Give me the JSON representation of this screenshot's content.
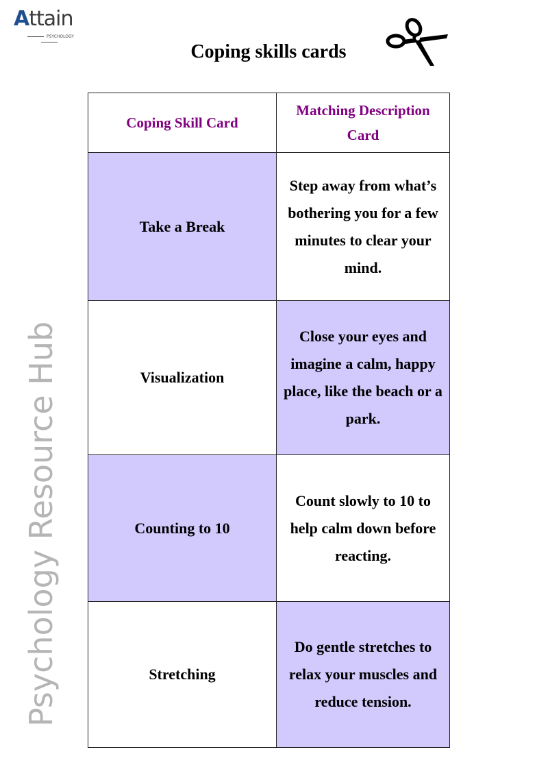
{
  "logo": {
    "name": "Attain",
    "sub": "PSYCHOLOGY"
  },
  "title": "Coping skills cards",
  "table": {
    "headers": [
      "Coping Skill Card",
      "Matching Description Card"
    ],
    "rows": [
      {
        "skill": "Take a Break",
        "description": "Step away from what’s bothering you for a few minutes to clear your mind."
      },
      {
        "skill": "Visualization",
        "description": "Close your eyes and imagine a calm, happy place, like the beach or a park."
      },
      {
        "skill": "Counting to 10",
        "description": "Count slowly to 10 to help calm down before reacting."
      },
      {
        "skill": "Stretching",
        "description": "Do gentle stretches to relax your muscles and reduce tension."
      }
    ]
  },
  "watermark": "Psychology Resource Hub",
  "colors": {
    "header_text": "#800080",
    "highlight": "#d2c9fd",
    "logo_blue": "#1f4f8f"
  },
  "icons": [
    "scissors-icon"
  ]
}
